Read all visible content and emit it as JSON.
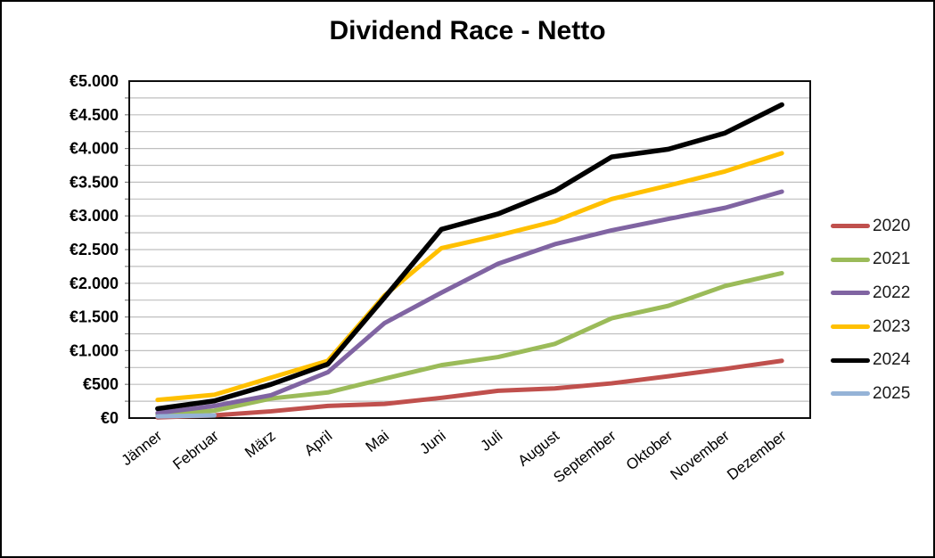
{
  "title": "Dividend Race - Netto",
  "chart_data": {
    "type": "line",
    "title": "Dividend Race - Netto",
    "categories": [
      "Jänner",
      "Februar",
      "März",
      "April",
      "Mai",
      "Juni",
      "Juli",
      "August",
      "September",
      "Oktober",
      "November",
      "Dezember"
    ],
    "series": [
      {
        "name": "2020",
        "color": "#C0504D",
        "values": [
          10,
          40,
          100,
          180,
          210,
          300,
          405,
          440,
          515,
          620,
          730,
          850
        ]
      },
      {
        "name": "2021",
        "color": "#9BBB59",
        "values": [
          55,
          110,
          290,
          380,
          585,
          785,
          905,
          1100,
          1480,
          1665,
          1960,
          2150
        ]
      },
      {
        "name": "2022",
        "color": "#8064A2",
        "values": [
          75,
          180,
          340,
          680,
          1410,
          1860,
          2290,
          2580,
          2785,
          2955,
          3120,
          3360
        ]
      },
      {
        "name": "2023",
        "color": "#FFC000",
        "values": [
          270,
          345,
          600,
          850,
          1820,
          2520,
          2710,
          2920,
          3250,
          3450,
          3660,
          3930
        ]
      },
      {
        "name": "2024",
        "color": "#000000",
        "values": [
          140,
          255,
          500,
          800,
          1790,
          2800,
          3030,
          3370,
          3875,
          3990,
          4230,
          4650
        ]
      },
      {
        "name": "2025",
        "color": "#95B3D7",
        "values": [
          25,
          40,
          null,
          null,
          null,
          null,
          null,
          null,
          null,
          null,
          null,
          null
        ]
      }
    ],
    "ylim": [
      0,
      5000
    ],
    "y_tick_step": 500,
    "gridline_step": 250,
    "y_tick_labels": [
      "€0",
      "€500",
      "€1.000",
      "€1.500",
      "€2.000",
      "€2.500",
      "€3.000",
      "€3.500",
      "€4.000",
      "€4.500",
      "€5.000"
    ],
    "grid": true,
    "legend_position": "right",
    "currency_symbol": "€"
  },
  "colors": {
    "background": "#FFFFFF",
    "frame": "#000000",
    "gridline": "#BFBFBF",
    "plot_border": "#0d0d0d",
    "axis_tick": "#808080",
    "axis_text": "#000000",
    "legend_text": "#1a1a1a"
  }
}
